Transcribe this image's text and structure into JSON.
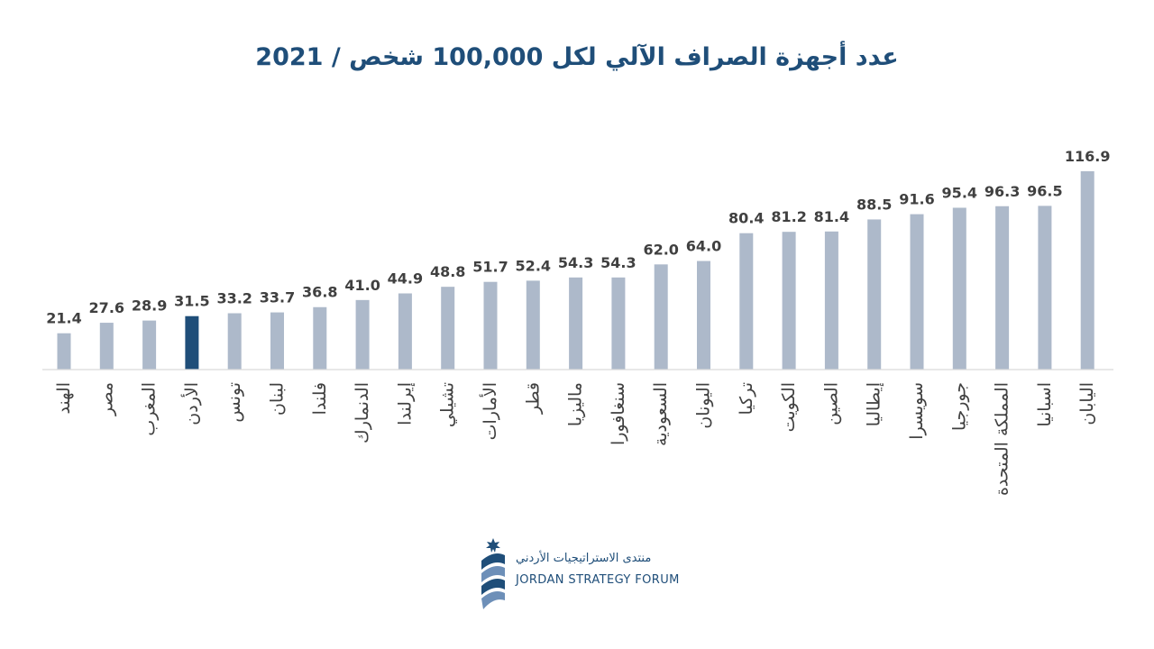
{
  "chart_data": {
    "type": "bar",
    "title": "عدد أجهزة الصراف الآلي لكل 100,000 شخص / 2021",
    "categories": [
      "الهند",
      "مصر",
      "المغرب",
      "الأردن",
      "تونس",
      "لبنان",
      "فلندا",
      "الدنمارك",
      "إيرلندا",
      "تشيلي",
      "الأمارات",
      "قطر",
      "ماليزيا",
      "سنغافورا",
      "السعودية",
      "اليونان",
      "تركيا",
      "الكويت",
      "الصين",
      "إيطاليا",
      "سويسرا",
      "جورجيا",
      "المملكة المتحدة",
      "اسبانيا",
      "اليابان"
    ],
    "values": [
      21.4,
      27.6,
      28.9,
      31.5,
      33.2,
      33.7,
      36.8,
      41.0,
      44.9,
      48.8,
      51.7,
      52.4,
      54.3,
      54.3,
      62.0,
      64.0,
      80.4,
      81.2,
      81.4,
      88.5,
      91.6,
      95.4,
      96.3,
      96.5,
      116.9
    ],
    "value_labels": [
      "21.4",
      "27.6",
      "28.9",
      "31.5",
      "33.2",
      "33.7",
      "36.8",
      "41.0",
      "44.9",
      "48.8",
      "51.7",
      "52.4",
      "54.3",
      "54.3",
      "62.0",
      "64.0",
      "80.4",
      "81.2",
      "81.4",
      "88.5",
      "91.6",
      "95.4",
      "96.3",
      "96.5",
      "116.9"
    ],
    "highlight_category": "الأردن",
    "colors": {
      "bar": "#adb9ca",
      "highlight": "#1f4e79",
      "axis": "#d9d9d9",
      "title": "#1f4e79"
    },
    "ylim": [
      0,
      116.9
    ],
    "grid": false,
    "legend": "none"
  },
  "logo": {
    "arabic_name": "منتدى الاستراتيجيات الأردني",
    "english_name": "JORDAN STRATEGY FORUM",
    "icon": "jordan-strategy-forum-emblem-icon"
  }
}
